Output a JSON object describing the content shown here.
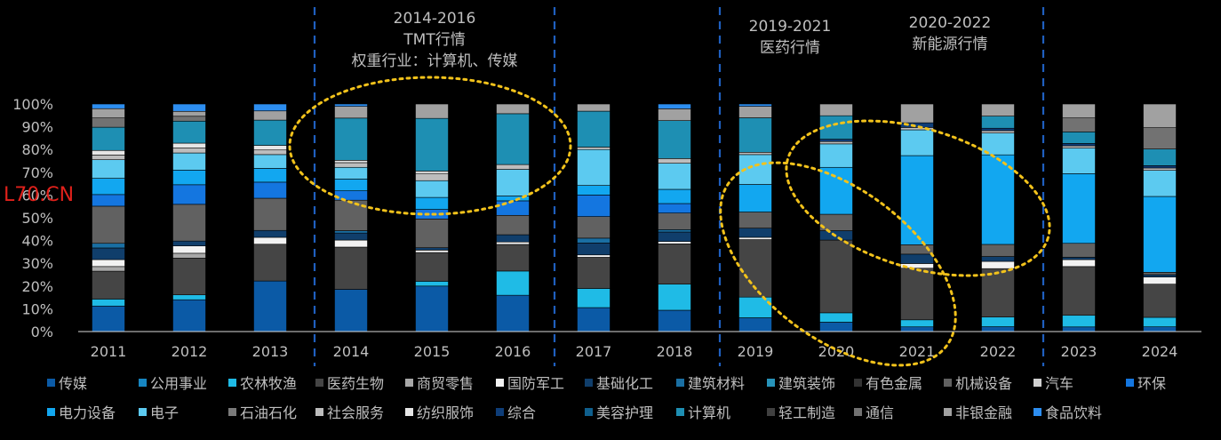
{
  "overlay_label": "L70.CN",
  "annotations": [
    {
      "lines": [
        "2014-2016",
        "TMT行情",
        "权重行业：计算机、传媒"
      ]
    },
    {
      "lines": [
        "2019-2021",
        "医药行情"
      ]
    },
    {
      "lines": [
        "2020-2022",
        "新能源行情"
      ]
    }
  ],
  "chart_data": {
    "type": "bar",
    "stacked": true,
    "categories": [
      "2011",
      "2012",
      "2013",
      "2014",
      "2015",
      "2016",
      "2017",
      "2018",
      "2019",
      "2020",
      "2021",
      "2022",
      "2023",
      "2024"
    ],
    "y_tick_labels": [
      "0%",
      "10%",
      "20%",
      "30%",
      "40%",
      "50%",
      "60%",
      "70%",
      "80%",
      "90%",
      "100%"
    ],
    "ylim": [
      0,
      100
    ],
    "grid": false,
    "legend_position": "bottom",
    "series": [
      {
        "name": "传媒",
        "color": "#0b5aa6",
        "values": [
          11,
          13,
          22,
          18,
          19,
          15,
          10,
          9,
          6,
          4,
          2,
          2,
          2,
          2
        ]
      },
      {
        "name": "公用事业",
        "color": "#1786c2",
        "values": [
          0,
          0,
          0,
          0,
          0,
          0,
          0,
          0,
          0,
          0,
          0,
          0,
          0,
          0
        ]
      },
      {
        "name": "农林牧渔",
        "color": "#1fbbe6",
        "values": [
          3,
          2,
          0,
          0,
          2,
          10,
          8,
          11,
          9,
          4,
          3,
          4,
          5,
          4
        ]
      },
      {
        "name": "医药生物",
        "color": "#454545",
        "values": [
          12,
          15,
          16,
          18,
          12,
          11,
          13,
          17,
          25,
          31,
          22,
          20,
          21,
          14
        ]
      },
      {
        "name": "商贸零售",
        "color": "#a8a8a8",
        "values": [
          2,
          2,
          0,
          0,
          0,
          0,
          0,
          0,
          0,
          0,
          0,
          0,
          0,
          0
        ]
      },
      {
        "name": "国防军工",
        "color": "#f2f2f2",
        "values": [
          3,
          3,
          3,
          3,
          1,
          1,
          1,
          1,
          1,
          0,
          2,
          3,
          3,
          3
        ]
      },
      {
        "name": "基础化工",
        "color": "#103e6b",
        "values": [
          5,
          2,
          3,
          3,
          1,
          3,
          5,
          4,
          4,
          4,
          4,
          2,
          1,
          1
        ]
      },
      {
        "name": "建筑材料",
        "color": "#1a6fa3",
        "values": [
          2,
          0,
          0,
          1,
          0,
          0,
          2,
          1,
          0,
          0,
          0,
          0,
          0,
          0
        ]
      },
      {
        "name": "建筑装饰",
        "color": "#2793b9",
        "values": [
          0,
          0,
          0,
          0,
          0,
          0,
          0,
          0,
          0,
          0,
          0,
          0,
          0,
          0
        ]
      },
      {
        "name": "有色金属",
        "color": "#333333",
        "values": [
          0,
          0,
          0,
          0,
          0,
          0,
          0,
          0,
          0,
          0,
          0,
          0,
          0,
          0
        ]
      },
      {
        "name": "机械设备",
        "color": "#616161",
        "values": [
          16,
          15,
          14,
          13,
          12,
          8,
          9,
          7,
          7,
          7,
          4,
          5,
          6,
          1
        ]
      },
      {
        "name": "汽车",
        "color": "#d0d0d0",
        "values": [
          0,
          0,
          0,
          0,
          0,
          0,
          0,
          0,
          0,
          0,
          0,
          0,
          0,
          0
        ]
      },
      {
        "name": "环保",
        "color": "#1476e0",
        "values": [
          5,
          8,
          7,
          4,
          4,
          6,
          9,
          4,
          0,
          0,
          0,
          0,
          0,
          0
        ]
      },
      {
        "name": "电力设备",
        "color": "#12a7f0",
        "values": [
          7,
          6,
          6,
          5,
          5,
          2,
          4,
          6,
          12,
          20,
          38,
          37,
          30,
          32
        ]
      },
      {
        "name": "电子",
        "color": "#5ccaf0",
        "values": [
          8,
          7,
          6,
          5,
          7,
          11,
          15,
          11,
          13,
          10,
          11,
          9,
          11,
          11
        ]
      },
      {
        "name": "石油石化",
        "color": "#7a7a7a",
        "values": [
          0,
          0,
          0,
          0,
          0,
          0,
          0,
          0,
          0,
          0,
          0,
          0,
          0,
          0
        ]
      },
      {
        "name": "社会服务",
        "color": "#bdbdbd",
        "values": [
          2,
          2,
          2,
          2,
          3,
          2,
          1,
          2,
          1,
          1,
          1,
          1,
          1,
          1
        ]
      },
      {
        "name": "纺织服饰",
        "color": "#e6e6e6",
        "values": [
          2,
          2,
          2,
          1,
          1,
          0,
          0,
          0,
          0,
          0,
          0,
          0,
          0,
          0
        ]
      },
      {
        "name": "综合",
        "color": "#0e3d78",
        "values": [
          0,
          0,
          0,
          0,
          0,
          0,
          0,
          0,
          0,
          1,
          2,
          1,
          1,
          1
        ]
      },
      {
        "name": "美容护理",
        "color": "#0f5f8d",
        "values": [
          0,
          0,
          0,
          0,
          0,
          0,
          0,
          0,
          0,
          0,
          0,
          0,
          0,
          0
        ]
      },
      {
        "name": "计算机",
        "color": "#1e8fb3",
        "values": [
          10,
          9,
          11,
          18,
          22,
          21,
          15,
          16,
          15,
          10,
          0,
          5,
          5,
          7
        ]
      },
      {
        "name": "轻工制造",
        "color": "#404040",
        "values": [
          0,
          0,
          0,
          0,
          0,
          0,
          0,
          0,
          0,
          0,
          0,
          0,
          0,
          0
        ]
      },
      {
        "name": "通信",
        "color": "#727272",
        "values": [
          4,
          2,
          0,
          0,
          0,
          0,
          0,
          0,
          0,
          0,
          0,
          0,
          6,
          9
        ]
      },
      {
        "name": "非银金融",
        "color": "#a1a1a1",
        "values": [
          4,
          2,
          4,
          5,
          6,
          4,
          3,
          5,
          5,
          5,
          8,
          5,
          6,
          10
        ]
      },
      {
        "name": "食品饮料",
        "color": "#2d8ef0",
        "values": [
          2,
          3,
          3,
          1,
          0,
          0,
          0,
          2,
          1,
          0,
          0,
          0,
          0,
          0
        ]
      }
    ]
  }
}
